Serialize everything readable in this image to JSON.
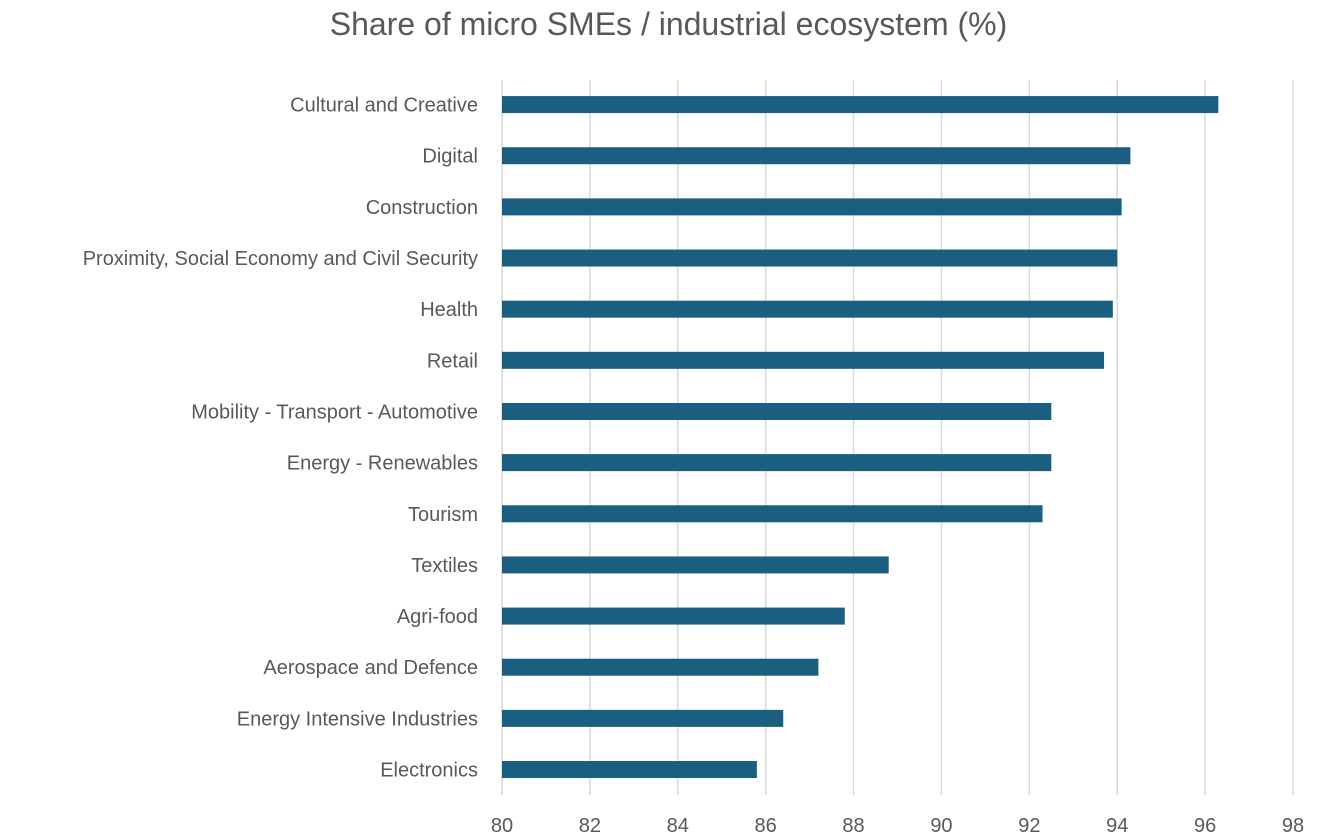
{
  "chart_data": {
    "type": "bar",
    "orientation": "horizontal",
    "title": "Share of micro SMEs / industrial ecosystem (%)",
    "xlabel": "",
    "ylabel": "",
    "xlim": [
      80,
      98
    ],
    "xticks": [
      "80",
      "82",
      "84",
      "86",
      "88",
      "90",
      "92",
      "94",
      "96",
      "98"
    ],
    "grid": "vertical",
    "legend": "none",
    "bar_color": "#1a5e80",
    "gridline_color": "#d9d9d9",
    "text_color": "#595959",
    "categories": [
      "Cultural and Creative",
      "Digital",
      "Construction",
      "Proximity, Social Economy and Civil Security",
      "Health",
      "Retail",
      "Mobility - Transport - Automotive",
      "Energy - Renewables",
      "Tourism",
      "Textiles",
      "Agri-food",
      "Aerospace and Defence",
      "Energy Intensive Industries",
      "Electronics"
    ],
    "values": [
      96.3,
      94.3,
      94.1,
      94.0,
      93.9,
      93.7,
      92.5,
      92.5,
      92.3,
      88.8,
      87.8,
      87.2,
      86.4,
      85.8
    ]
  }
}
